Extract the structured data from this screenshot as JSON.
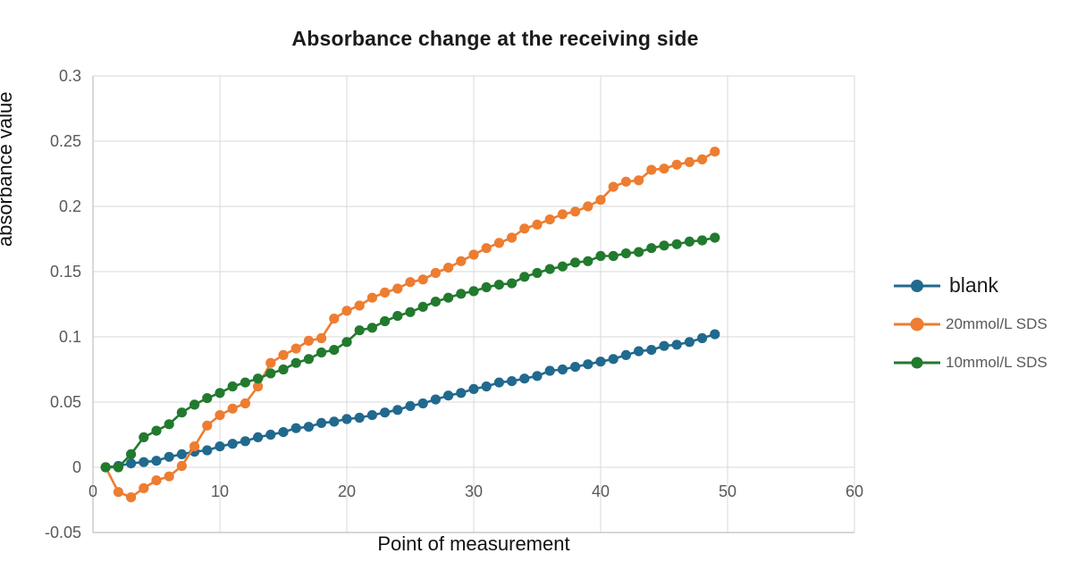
{
  "chart_data": {
    "type": "line",
    "title": "Absorbance change at the receiving side",
    "xlabel": "Point of measurement",
    "ylabel": "absorbance value",
    "xlim": [
      0,
      60
    ],
    "ylim": [
      -0.05,
      0.3
    ],
    "x_tick_labels": [
      "0",
      "10",
      "20",
      "30",
      "40",
      "50",
      "60"
    ],
    "y_tick_labels": [
      "-0.05",
      "0",
      "0.05",
      "0.1",
      "0.15",
      "0.2",
      "0.25",
      "0.3"
    ],
    "x_ticks": [
      0,
      10,
      20,
      30,
      40,
      50,
      60
    ],
    "y_ticks": [
      -0.05,
      0,
      0.05,
      0.1,
      0.15,
      0.2,
      0.25,
      0.3
    ],
    "grid": true,
    "legend_position": "right",
    "marker": "circle",
    "x": [
      1,
      2,
      3,
      4,
      5,
      6,
      7,
      8,
      9,
      10,
      11,
      12,
      13,
      14,
      15,
      16,
      17,
      18,
      19,
      20,
      21,
      22,
      23,
      24,
      25,
      26,
      27,
      28,
      29,
      30,
      31,
      32,
      33,
      34,
      35,
      36,
      37,
      38,
      39,
      40,
      41,
      42,
      43,
      44,
      45,
      46,
      47,
      48,
      49
    ],
    "series": [
      {
        "name": "blank",
        "color": "#21698E",
        "values": [
          0,
          0.001,
          0.003,
          0.004,
          0.005,
          0.008,
          0.01,
          0.012,
          0.013,
          0.016,
          0.018,
          0.02,
          0.023,
          0.025,
          0.027,
          0.03,
          0.031,
          0.034,
          0.035,
          0.037,
          0.038,
          0.04,
          0.042,
          0.044,
          0.047,
          0.049,
          0.052,
          0.055,
          0.057,
          0.06,
          0.062,
          0.065,
          0.066,
          0.068,
          0.07,
          0.074,
          0.075,
          0.077,
          0.079,
          0.081,
          0.083,
          0.086,
          0.089,
          0.09,
          0.093,
          0.094,
          0.096,
          0.099,
          0.102
        ]
      },
      {
        "name": "20mmol/L SDS",
        "color": "#ED7D31",
        "values": [
          0,
          -0.019,
          -0.023,
          -0.016,
          -0.01,
          -0.007,
          0.001,
          0.016,
          0.032,
          0.04,
          0.045,
          0.049,
          0.062,
          0.08,
          0.086,
          0.091,
          0.097,
          0.099,
          0.114,
          0.12,
          0.124,
          0.13,
          0.134,
          0.137,
          0.142,
          0.144,
          0.149,
          0.153,
          0.158,
          0.163,
          0.168,
          0.172,
          0.176,
          0.183,
          0.186,
          0.19,
          0.194,
          0.196,
          0.2,
          0.205,
          0.215,
          0.219,
          0.22,
          0.228,
          0.229,
          0.232,
          0.234,
          0.236,
          0.242
        ]
      },
      {
        "name": "10mmol/L SDS",
        "color": "#227A2E",
        "values": [
          0,
          0,
          0.01,
          0.023,
          0.028,
          0.033,
          0.042,
          0.048,
          0.053,
          0.057,
          0.062,
          0.065,
          0.068,
          0.072,
          0.075,
          0.08,
          0.083,
          0.088,
          0.09,
          0.096,
          0.105,
          0.107,
          0.112,
          0.116,
          0.119,
          0.123,
          0.127,
          0.13,
          0.133,
          0.135,
          0.138,
          0.14,
          0.141,
          0.146,
          0.149,
          0.152,
          0.154,
          0.157,
          0.158,
          0.162,
          0.162,
          0.164,
          0.165,
          0.168,
          0.17,
          0.171,
          0.173,
          0.174,
          0.176
        ]
      }
    ],
    "colors": {
      "gridline": "#d9d9d9",
      "axis_line": "#bfbfbf",
      "tick_label": "#595959",
      "title_text": "#1a1a1a"
    }
  }
}
